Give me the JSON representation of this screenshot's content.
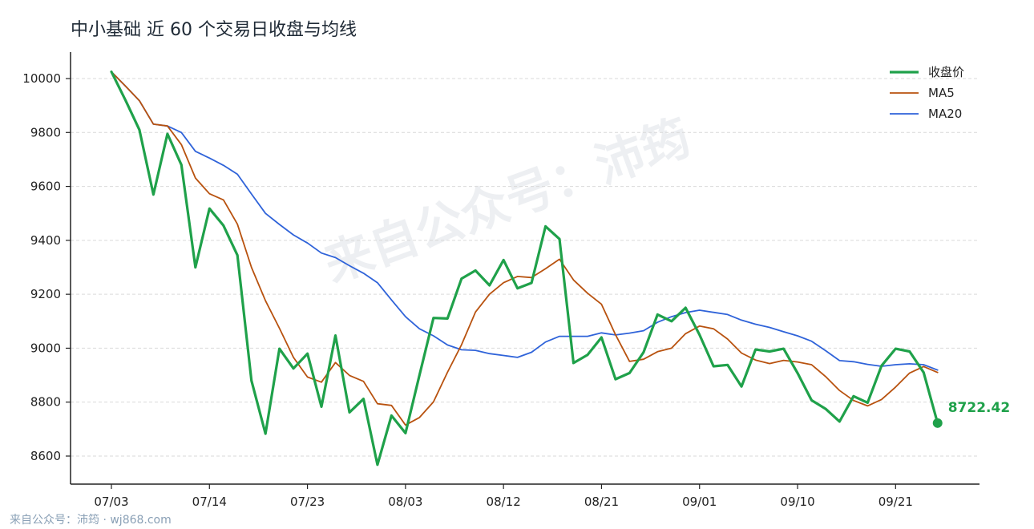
{
  "chart_data": {
    "type": "line",
    "title": "中小基础 近 60 个交易日收盘与均线",
    "xlabel": "",
    "ylabel": "",
    "ylim": [
      8500,
      10100
    ],
    "yticks": [
      8600,
      8800,
      9000,
      9200,
      9400,
      9600,
      9800,
      10000
    ],
    "xtick_labels": [
      {
        "index": 0,
        "label": "07/03"
      },
      {
        "index": 7,
        "label": "07/14"
      },
      {
        "index": 14,
        "label": "07/23"
      },
      {
        "index": 21,
        "label": "08/03"
      },
      {
        "index": 28,
        "label": "08/12"
      },
      {
        "index": 35,
        "label": "08/21"
      },
      {
        "index": 42,
        "label": "09/01"
      },
      {
        "index": 49,
        "label": "09/10"
      },
      {
        "index": 56,
        "label": "09/21"
      }
    ],
    "grid": "horizontal dashed",
    "legend_position": "top-right",
    "end_label": "8722.42",
    "series": [
      {
        "name": "收盘价",
        "color": "#1fa14a",
        "values": [
          10025,
          9920,
          9810,
          9570,
          9795,
          9680,
          9300,
          9518,
          9455,
          9345,
          8880,
          8683,
          8998,
          8925,
          8980,
          8783,
          9047,
          8762,
          8812,
          8568,
          8750,
          8685,
          8900,
          9112,
          9110,
          9258,
          9288,
          9233,
          9327,
          9222,
          9242,
          9452,
          9405,
          8945,
          8975,
          9040,
          8885,
          8908,
          8985,
          9125,
          9100,
          9150,
          9050,
          8933,
          8938,
          8858,
          8995,
          8988,
          8998,
          8908,
          8807,
          8775,
          8728,
          8822,
          8798,
          8935,
          8998,
          8988,
          8910,
          8722.42
        ]
      },
      {
        "name": "MA5",
        "color": "#b8520f",
        "values": [
          10025,
          9972,
          9918,
          9831,
          9824,
          9755,
          9631,
          9573,
          9550,
          9460,
          9300,
          9176,
          9074,
          8966,
          8893,
          8874,
          8947,
          8899,
          8877,
          8794,
          8788,
          8715,
          8743,
          8801,
          8911,
          9013,
          9134,
          9200,
          9243,
          9266,
          9262,
          9295,
          9330,
          9253,
          9204,
          9163,
          9050,
          8951,
          8959,
          8987,
          9000,
          9054,
          9082,
          9072,
          9034,
          8982,
          8956,
          8943,
          8955,
          8949,
          8939,
          8895,
          8843,
          8806,
          8786,
          8810,
          8856,
          8908,
          8932,
          8910
        ]
      },
      {
        "name": "MA20",
        "color": "#2f63d9",
        "values": [
          10025,
          9972,
          9918,
          9831,
          9824,
          9800,
          9730,
          9705,
          9678,
          9645,
          9572,
          9500,
          9459,
          9420,
          9390,
          9353,
          9336,
          9306,
          9278,
          9243,
          9179,
          9117,
          9072,
          9046,
          9012,
          8994,
          8992,
          8980,
          8973,
          8966,
          8985,
          9023,
          9044,
          9044,
          9044,
          9057,
          9049,
          9056,
          9065,
          9096,
          9117,
          9132,
          9141,
          9133,
          9125,
          9104,
          9089,
          9077,
          9061,
          9046,
          9026,
          8991,
          8954,
          8950,
          8940,
          8933,
          8939,
          8942,
          8939,
          8919
        ]
      }
    ]
  },
  "watermark": "来自公众号：沛筠",
  "footer_text": "来自公众号：沛筠 · wj868.com"
}
